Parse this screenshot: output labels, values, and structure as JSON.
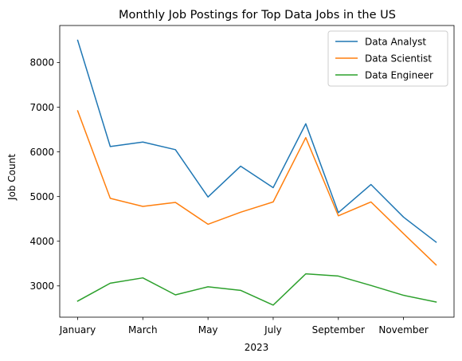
{
  "chart_data": {
    "type": "line",
    "title": "Monthly Job Postings for Top Data Jobs in the US",
    "xlabel": "2023",
    "ylabel": "Job Count",
    "x": [
      "January",
      "February",
      "March",
      "April",
      "May",
      "June",
      "July",
      "August",
      "September",
      "October",
      "November",
      "December"
    ],
    "x_tick_labels": [
      {
        "month": "January",
        "label": "January"
      },
      {
        "month": "March",
        "label": "March"
      },
      {
        "month": "May",
        "label": "May"
      },
      {
        "month": "July",
        "label": "July"
      },
      {
        "month": "September",
        "label": "September"
      },
      {
        "month": "November",
        "label": "November"
      }
    ],
    "yticks": [
      3000,
      4000,
      5000,
      6000,
      7000,
      8000
    ],
    "ylim": [
      2300,
      8830
    ],
    "grid": false,
    "legend_position": "top-right",
    "series": [
      {
        "name": "Data Analyst",
        "color": "#1f77b4",
        "values": [
          8500,
          6120,
          6220,
          6050,
          4990,
          5680,
          5200,
          6630,
          4640,
          5270,
          4540,
          3980
        ]
      },
      {
        "name": "Data Scientist",
        "color": "#ff7f0e",
        "values": [
          6920,
          4960,
          4780,
          4870,
          4380,
          4650,
          4880,
          6320,
          4570,
          4880,
          4170,
          3470
        ]
      },
      {
        "name": "Data Engineer",
        "color": "#2ca02c",
        "values": [
          2660,
          3060,
          3180,
          2800,
          2980,
          2900,
          2570,
          3270,
          3220,
          3010,
          2790,
          2640
        ]
      }
    ]
  }
}
